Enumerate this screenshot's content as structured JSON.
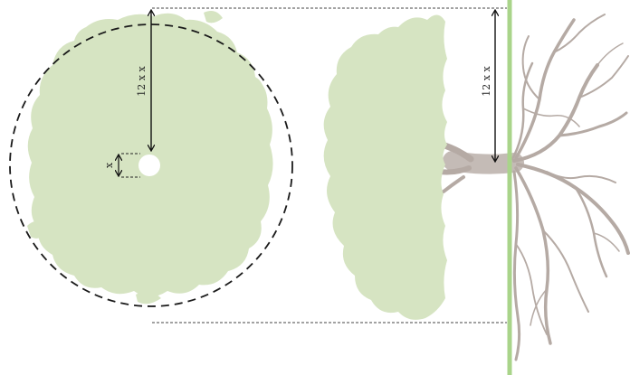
{
  "labels": {
    "radius_top_view": "12 x x",
    "hole_size": "x",
    "radius_side_view": "12 x x"
  },
  "colors": {
    "foliage": "#d6e4c2",
    "ground_line": "#a9d48a",
    "roots": "#b5aaa4",
    "trunk": "#c4bbb6",
    "guides": "#444444",
    "circle_dash": "#1a1a1a",
    "arrows": "#111111"
  }
}
